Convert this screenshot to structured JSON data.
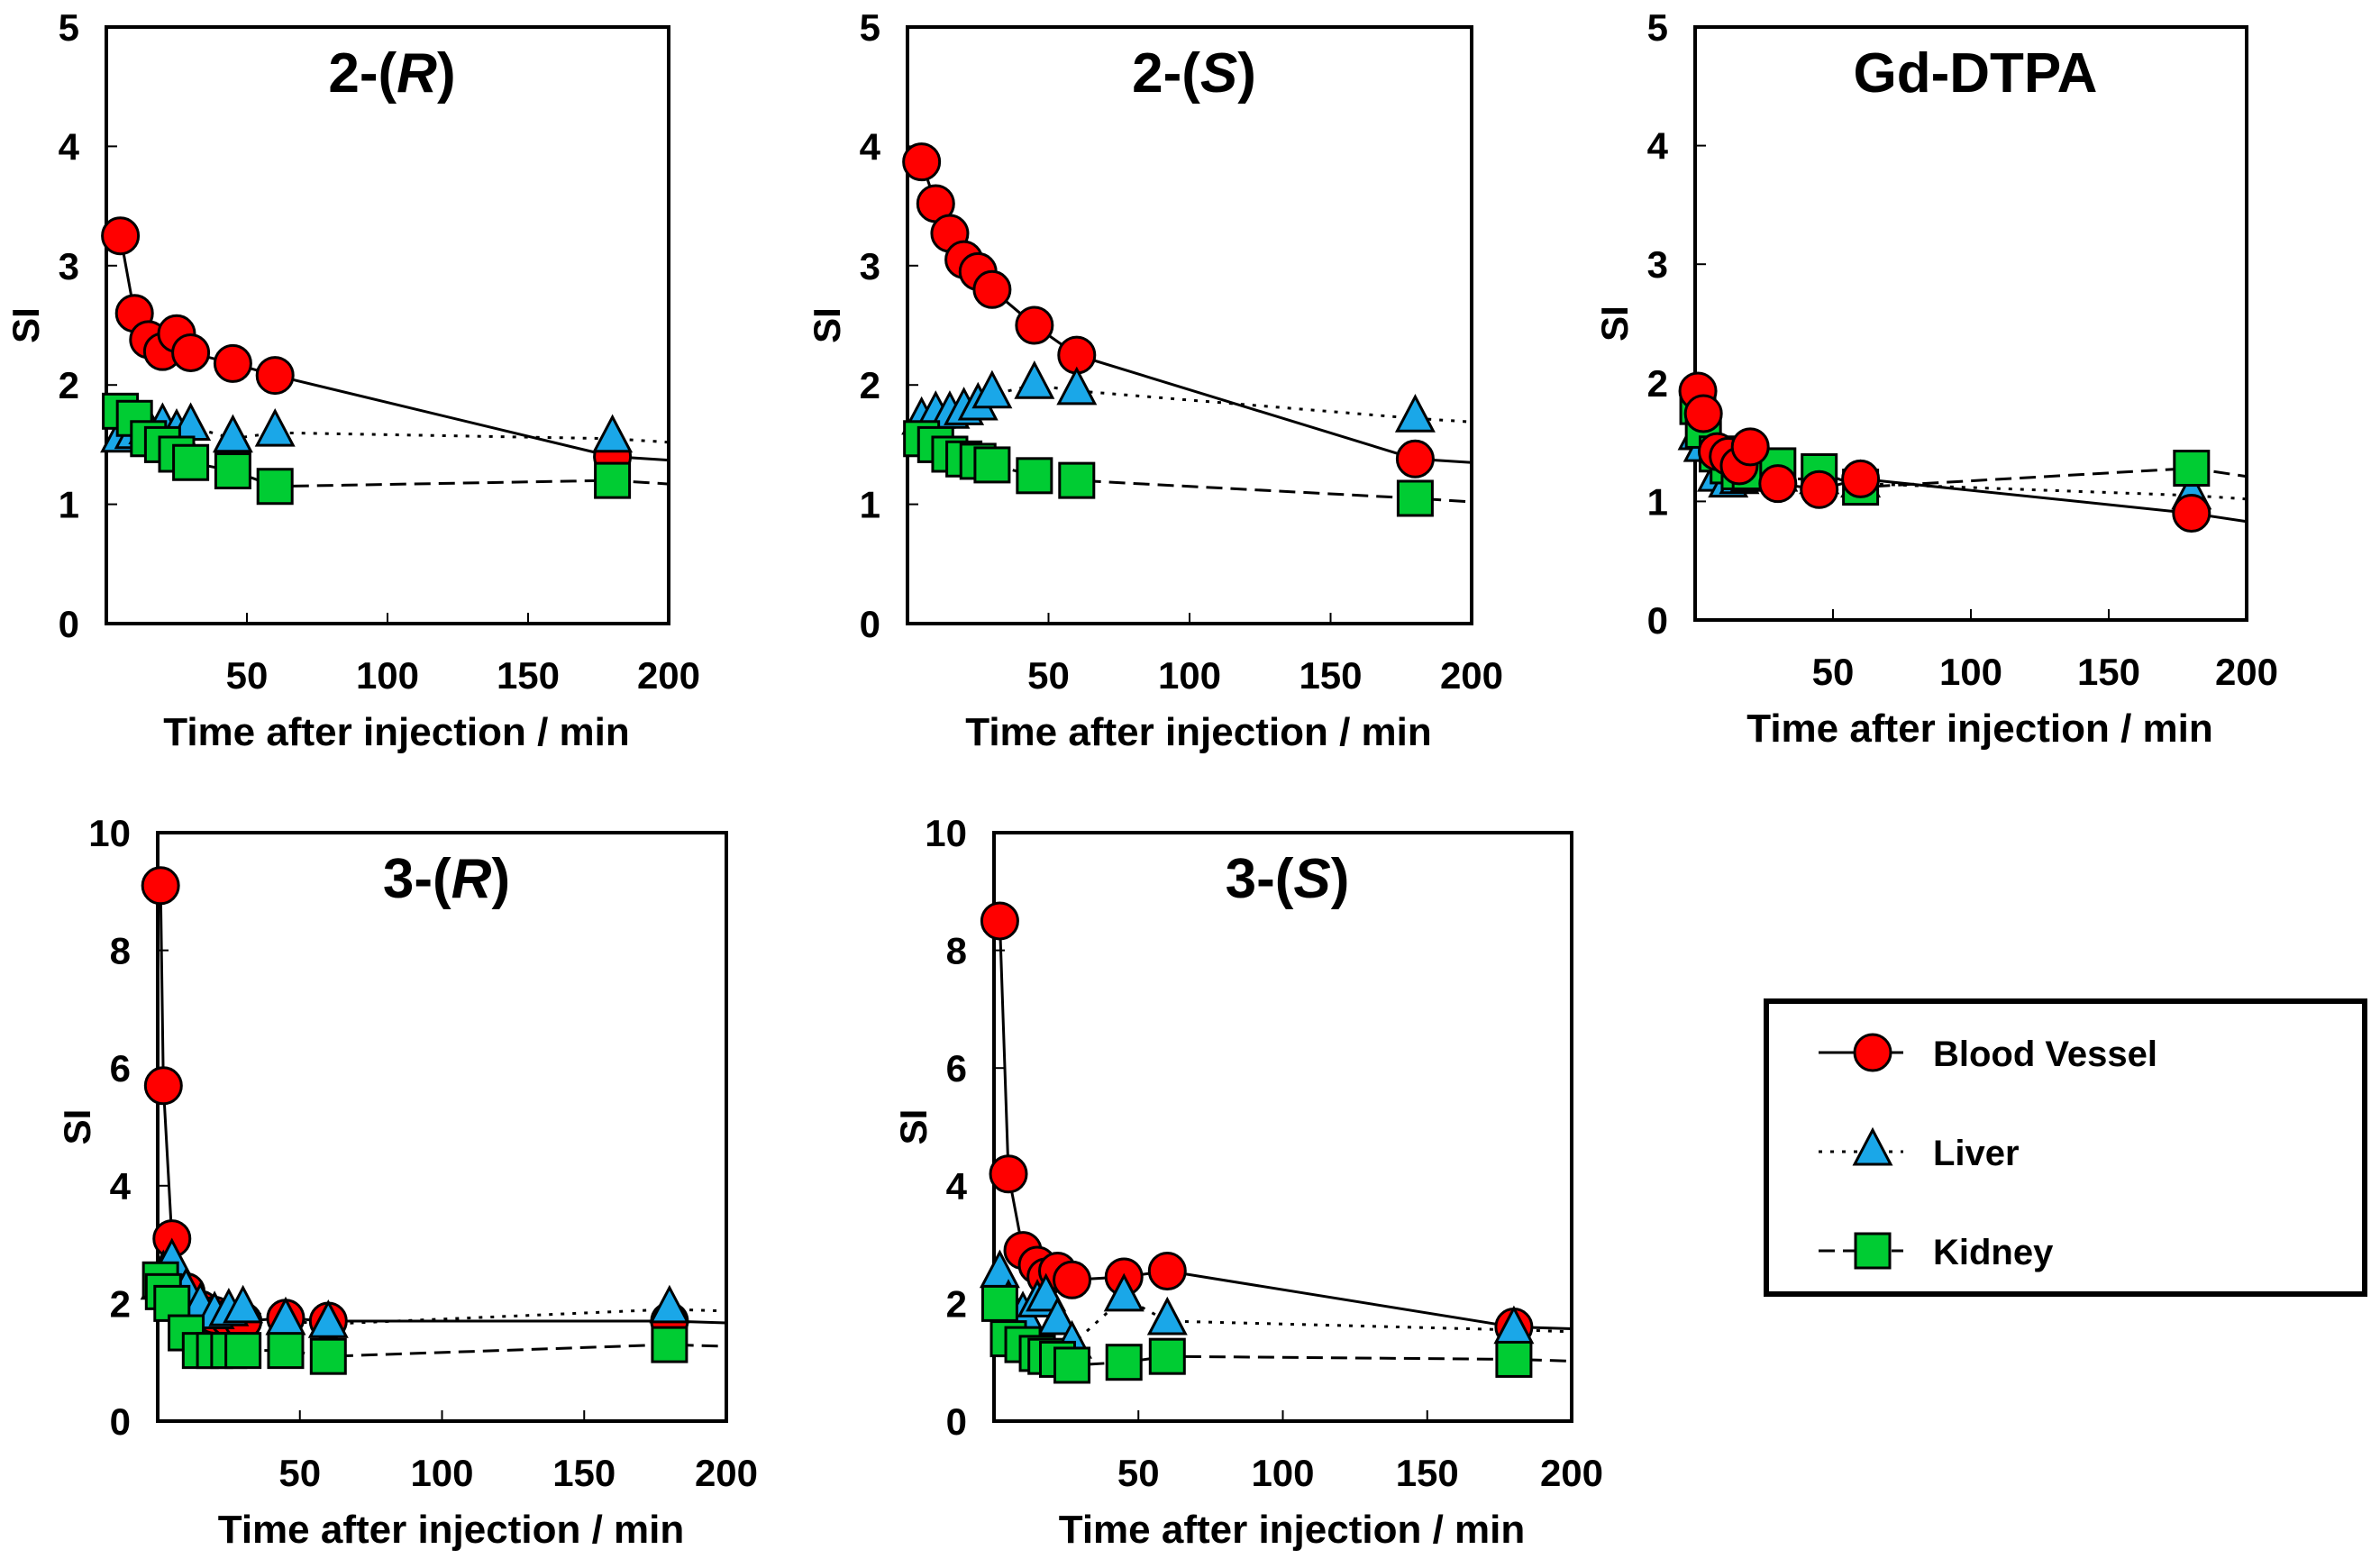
{
  "colors": {
    "blood": "#ff0000",
    "liver": "#1aa7e8",
    "kidney": "#00cc33",
    "stroke": "#000000"
  },
  "legend": {
    "placement": "bottom-right",
    "items": [
      {
        "key": "blood",
        "label": "Blood Vessel",
        "marker": "circle",
        "line": "solid"
      },
      {
        "key": "liver",
        "label": "Liver",
        "marker": "triangle",
        "line": "dotted"
      },
      {
        "key": "kidney",
        "label": "Kidney",
        "marker": "square",
        "line": "dashed"
      }
    ]
  },
  "chart_data": [
    {
      "type": "line",
      "title": "2-(R)",
      "title_main": "2-(",
      "title_italic": "R",
      "title_end": ")",
      "xlabel": "Time after injection  / min",
      "ylabel": "SI",
      "xlim": [
        0,
        200
      ],
      "ylim": [
        0,
        5
      ],
      "xticks": [
        50,
        100,
        150,
        200
      ],
      "yticks": [
        0,
        1,
        2,
        3,
        4,
        5
      ],
      "grid": false,
      "x": [
        5,
        10,
        15,
        20,
        25,
        30,
        45,
        60,
        180
      ],
      "series": [
        {
          "name": "Blood Vessel",
          "key": "blood",
          "values": [
            3.25,
            2.6,
            2.38,
            2.28,
            2.43,
            2.27,
            2.18,
            2.08,
            1.4
          ]
        },
        {
          "name": "Liver",
          "key": "liver",
          "values": [
            1.55,
            1.58,
            1.62,
            1.65,
            1.6,
            1.65,
            1.55,
            1.6,
            1.55
          ]
        },
        {
          "name": "Kidney",
          "key": "kidney",
          "values": [
            1.78,
            1.72,
            1.55,
            1.5,
            1.42,
            1.35,
            1.28,
            1.15,
            1.2
          ]
        }
      ]
    },
    {
      "type": "line",
      "title": "2-(S)",
      "title_main": "2-(",
      "title_italic": "S",
      "title_end": ")",
      "xlabel": "Time after injection  / min",
      "ylabel": "SI",
      "xlim": [
        0,
        200
      ],
      "ylim": [
        0,
        5
      ],
      "xticks": [
        50,
        100,
        150,
        200
      ],
      "yticks": [
        0,
        1,
        2,
        3,
        4,
        5
      ],
      "grid": false,
      "x": [
        5,
        10,
        15,
        20,
        25,
        30,
        45,
        60,
        180
      ],
      "series": [
        {
          "name": "Blood Vessel",
          "key": "blood",
          "values": [
            3.87,
            3.52,
            3.27,
            3.05,
            2.95,
            2.8,
            2.5,
            2.25,
            1.38
          ]
        },
        {
          "name": "Liver",
          "key": "liver",
          "values": [
            1.7,
            1.75,
            1.75,
            1.78,
            1.82,
            1.92,
            2.0,
            1.95,
            1.72
          ]
        },
        {
          "name": "Kidney",
          "key": "kidney",
          "values": [
            1.55,
            1.5,
            1.42,
            1.38,
            1.36,
            1.33,
            1.24,
            1.2,
            1.05
          ]
        }
      ]
    },
    {
      "type": "line",
      "title": "Gd-DTPA",
      "title_main": "Gd-DTPA",
      "title_italic": "",
      "title_end": "",
      "xlabel": "Time after injection  / min",
      "ylabel": "SI",
      "xlim": [
        0,
        200
      ],
      "ylim": [
        0,
        5
      ],
      "xticks": [
        50,
        100,
        150,
        200
      ],
      "yticks": [
        0,
        1,
        2,
        3,
        4,
        5
      ],
      "grid": false,
      "x": [
        1,
        3,
        8,
        12,
        16,
        20,
        30,
        45,
        60,
        180
      ],
      "series": [
        {
          "name": "Liver",
          "key": "liver",
          "values": [
            1.55,
            1.45,
            1.2,
            1.15,
            1.18,
            1.2,
            1.2,
            1.18,
            1.15,
            1.05
          ]
        },
        {
          "name": "Kidney",
          "key": "kidney",
          "values": [
            1.8,
            1.6,
            1.4,
            1.3,
            1.25,
            1.25,
            1.3,
            1.25,
            1.12,
            1.28
          ]
        },
        {
          "name": "Blood Vessel",
          "key": "blood",
          "values": [
            1.93,
            1.74,
            1.42,
            1.38,
            1.3,
            1.46,
            1.15,
            1.1,
            1.19,
            0.9
          ]
        }
      ]
    },
    {
      "type": "line",
      "title": "3-(R)",
      "title_main": "3-(",
      "title_italic": "R",
      "title_end": ")",
      "xlabel": "Time after injection  / min",
      "ylabel": "SI",
      "xlim": [
        0,
        200
      ],
      "ylim": [
        0,
        10
      ],
      "xticks": [
        50,
        100,
        150,
        200
      ],
      "yticks": [
        0,
        2,
        4,
        6,
        8,
        10
      ],
      "grid": false,
      "x": [
        1,
        2,
        5,
        10,
        15,
        20,
        25,
        30,
        45,
        60,
        180
      ],
      "series": [
        {
          "name": "Blood Vessel",
          "key": "blood",
          "values": [
            9.1,
            5.7,
            3.1,
            2.2,
            1.9,
            1.8,
            1.75,
            1.7,
            1.75,
            1.7,
            1.7
          ]
        },
        {
          "name": "Liver",
          "key": "liver",
          "values": [
            2.3,
            2.5,
            2.7,
            2.2,
            1.95,
            1.8,
            1.85,
            1.9,
            1.7,
            1.65,
            1.9
          ]
        },
        {
          "name": "Kidney",
          "key": "kidney",
          "values": [
            2.4,
            2.2,
            2.0,
            1.5,
            1.2,
            1.2,
            1.2,
            1.2,
            1.2,
            1.1,
            1.3
          ]
        }
      ]
    },
    {
      "type": "line",
      "title": "3-(S)",
      "title_main": "3-(",
      "title_italic": "S",
      "title_end": ")",
      "xlabel": "Time after injection  / min",
      "ylabel": "SI",
      "xlim": [
        0,
        200
      ],
      "ylim": [
        0,
        10
      ],
      "xticks": [
        50,
        100,
        150,
        200
      ],
      "yticks": [
        0,
        2,
        4,
        6,
        8,
        10
      ],
      "grid": false,
      "x": [
        2,
        5,
        10,
        15,
        18,
        22,
        27,
        45,
        60,
        180
      ],
      "series": [
        {
          "name": "Blood Vessel",
          "key": "blood",
          "values": [
            8.5,
            4.2,
            2.9,
            2.65,
            2.45,
            2.55,
            2.4,
            2.45,
            2.55,
            1.6
          ]
        },
        {
          "name": "Liver",
          "key": "liver",
          "values": [
            2.5,
            2.0,
            1.8,
            2.0,
            2.1,
            1.7,
            1.3,
            2.1,
            1.7,
            1.55
          ]
        },
        {
          "name": "Kidney",
          "key": "kidney",
          "values": [
            2.0,
            1.4,
            1.3,
            1.15,
            1.1,
            1.05,
            0.95,
            1.0,
            1.1,
            1.05
          ]
        }
      ]
    }
  ]
}
